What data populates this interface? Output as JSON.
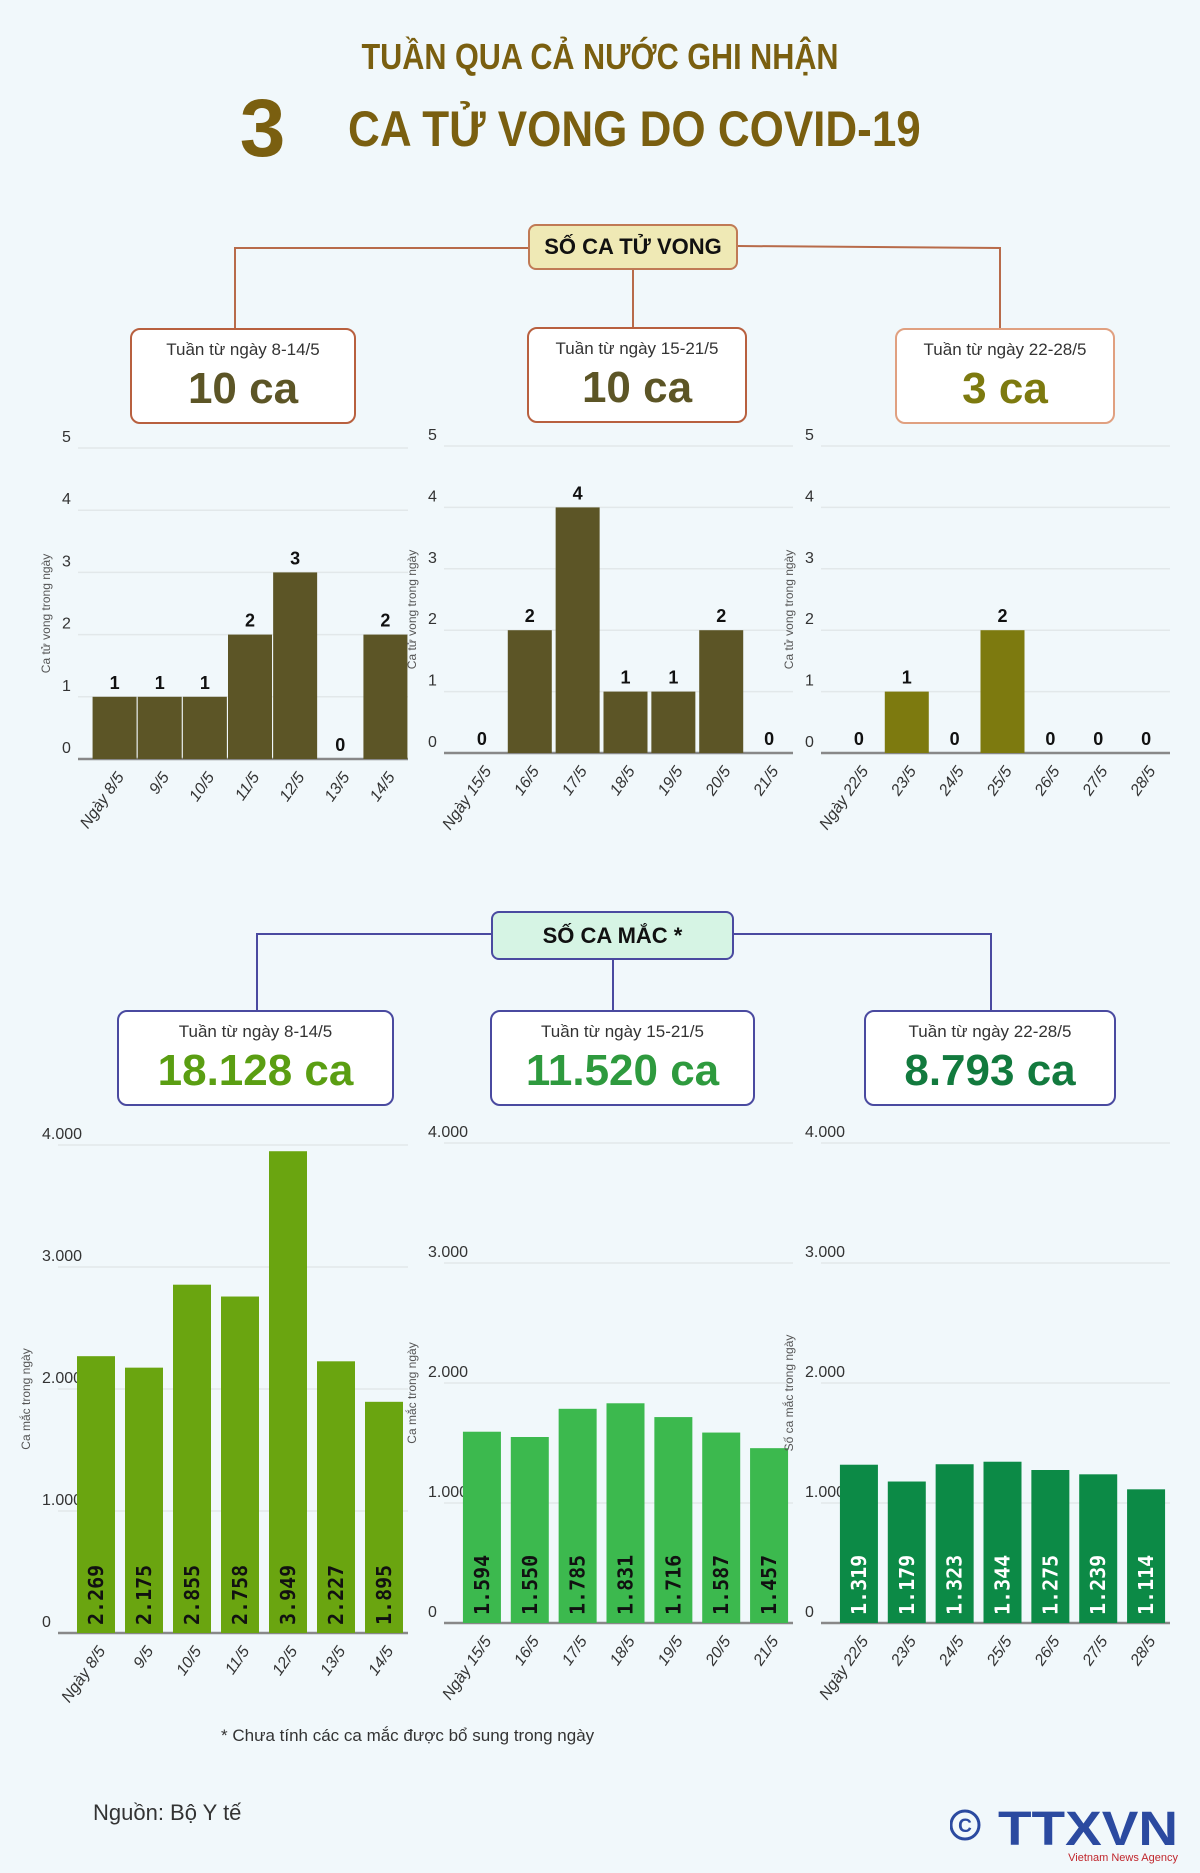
{
  "header": {
    "line1": "TUẦN QUA CẢ NƯỚC GHI NHẬN",
    "big_number": "3",
    "line2": "CA TỬ VONG DO COVID-19"
  },
  "deaths": {
    "hub_label": "SỐ CA TỬ VONG",
    "weeks": [
      {
        "label": "Tuần từ ngày 8-14/5",
        "total": "10 ca",
        "color": "#5c5526"
      },
      {
        "label": "Tuần từ ngày 15-21/5",
        "total": "10 ca",
        "color": "#5c5526"
      },
      {
        "label": "Tuần từ ngày 22-28/5",
        "total": "3 ca",
        "color": "#7d7a0f"
      }
    ]
  },
  "cases": {
    "hub_label": "SỐ CA MẮC *",
    "weeks": [
      {
        "label": "Tuần từ ngày 8-14/5",
        "total": "18.128 ca",
        "color": "#5a9e12"
      },
      {
        "label": "Tuần từ ngày 15-21/5",
        "total": "11.520 ca",
        "color": "#2e9a3e"
      },
      {
        "label": "Tuần từ ngày 22-28/5",
        "total": "8.793 ca",
        "color": "#127a3e"
      }
    ]
  },
  "chart_data": [
    {
      "type": "bar",
      "ylabel": "Ca tử vong trong ngày",
      "ylim": [
        0,
        5
      ],
      "yticks": [
        "0",
        "1",
        "2",
        "3",
        "4",
        "5"
      ],
      "grid": true,
      "categories": [
        "Ngày 8/5",
        "9/5",
        "10/5",
        "11/5",
        "12/5",
        "13/5",
        "14/5"
      ],
      "values": [
        1,
        1,
        1,
        2,
        3,
        0,
        2
      ],
      "value_labels": [
        "1",
        "1",
        "1",
        "2",
        "3",
        "0",
        "2"
      ],
      "color": "#5c5526"
    },
    {
      "type": "bar",
      "ylabel": "Ca tử vong trong ngày",
      "ylim": [
        0,
        5
      ],
      "yticks": [
        "0",
        "1",
        "2",
        "3",
        "4",
        "5"
      ],
      "grid": true,
      "categories": [
        "Ngày 15/5",
        "16/5",
        "17/5",
        "18/5",
        "19/5",
        "20/5",
        "21/5"
      ],
      "values": [
        0,
        2,
        4,
        1,
        1,
        2,
        0
      ],
      "value_labels": [
        "0",
        "2",
        "4",
        "1",
        "1",
        "2",
        "0"
      ],
      "color": "#5c5526"
    },
    {
      "type": "bar",
      "ylabel": "Ca tử vong trong ngày",
      "ylim": [
        0,
        5
      ],
      "yticks": [
        "0",
        "1",
        "2",
        "3",
        "4",
        "5"
      ],
      "grid": true,
      "categories": [
        "Ngày 22/5",
        "23/5",
        "24/5",
        "25/5",
        "26/5",
        "27/5",
        "28/5"
      ],
      "values": [
        0,
        1,
        0,
        2,
        0,
        0,
        0
      ],
      "value_labels": [
        "0",
        "1",
        "0",
        "2",
        "0",
        "0",
        "0"
      ],
      "color": "#7d7a0f"
    },
    {
      "type": "bar",
      "ylabel": "Ca mắc trong ngày",
      "ylim": [
        0,
        4000
      ],
      "yticks": [
        "0",
        "1.000",
        "2.000",
        "3.000",
        "4.000"
      ],
      "grid": true,
      "categories": [
        "Ngày 8/5",
        "9/5",
        "10/5",
        "11/5",
        "12/5",
        "13/5",
        "14/5"
      ],
      "values": [
        2269,
        2175,
        2855,
        2758,
        3949,
        2227,
        1895
      ],
      "value_labels": [
        "2.269",
        "2.175",
        "2.855",
        "2.758",
        "3.949",
        "2.227",
        "1.895"
      ],
      "color": "#6aa510"
    },
    {
      "type": "bar",
      "ylabel": "Ca mắc trong ngày",
      "ylim": [
        0,
        4000
      ],
      "yticks": [
        "0",
        "1.000",
        "2.000",
        "3.000",
        "4.000"
      ],
      "grid": true,
      "categories": [
        "Ngày 15/5",
        "16/5",
        "17/5",
        "18/5",
        "19/5",
        "20/5",
        "21/5"
      ],
      "values": [
        1594,
        1550,
        1785,
        1831,
        1716,
        1587,
        1457
      ],
      "value_labels": [
        "1.594",
        "1.550",
        "1.785",
        "1.831",
        "1.716",
        "1.587",
        "1.457"
      ],
      "color": "#3cb94e"
    },
    {
      "type": "bar",
      "ylabel": "Số ca mắc trong ngày",
      "ylim": [
        0,
        4000
      ],
      "yticks": [
        "0",
        "1.000",
        "2.000",
        "3.000",
        "4.000"
      ],
      "grid": true,
      "categories": [
        "Ngày 22/5",
        "23/5",
        "24/5",
        "25/5",
        "26/5",
        "27/5",
        "28/5"
      ],
      "values": [
        1319,
        1179,
        1323,
        1344,
        1275,
        1239,
        1114
      ],
      "value_labels": [
        "1.319",
        "1.179",
        "1.323",
        "1.344",
        "1.275",
        "1.239",
        "1.114"
      ],
      "color": "#0c8a46"
    }
  ],
  "footnote": "* Chưa tính các ca mắc được bổ sung trong ngày",
  "source": "Nguồn: Bộ Y tế",
  "logo": {
    "text": "TTXVN",
    "subtitle": "Vietnam News Agency"
  }
}
